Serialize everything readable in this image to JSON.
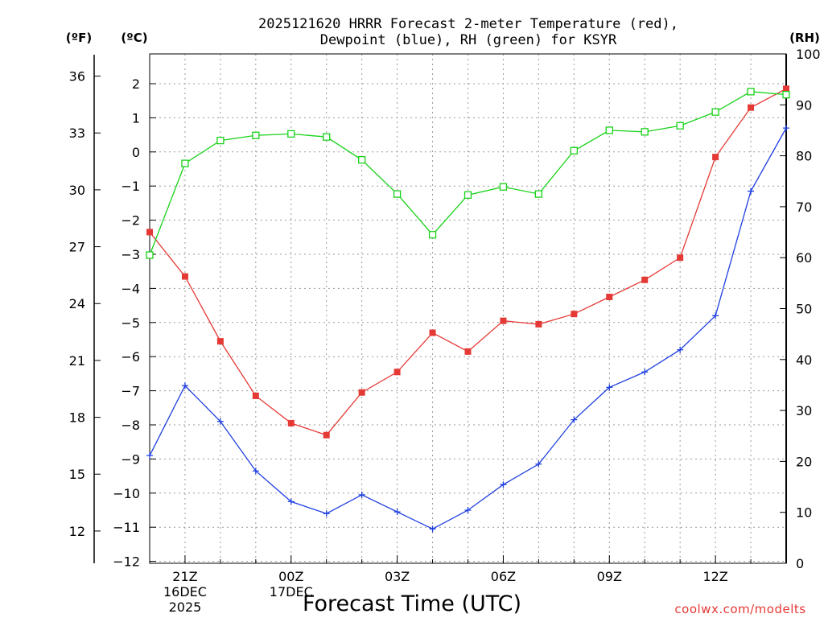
{
  "chart_data": {
    "type": "line",
    "title_lines": [
      "2025121620 HRRR Forecast 2-meter Temperature (red),",
      "Dewpoint (blue), RH (green) for KSYR"
    ],
    "xlabel": "Forecast Time (UTC)",
    "unit_labels": {
      "fahrenheit": "(ºF)",
      "celsius": "(ºC)",
      "rh": "(RH)"
    },
    "x_hours": [
      20,
      21,
      22,
      23,
      24,
      25,
      26,
      27,
      28,
      29,
      30,
      31,
      32,
      33,
      34,
      35,
      36,
      37,
      38
    ],
    "x_range": [
      20,
      38
    ],
    "x_ticks": [
      {
        "hour": 21,
        "lines": [
          "21Z",
          "16DEC",
          "2025"
        ]
      },
      {
        "hour": 24,
        "lines": [
          "00Z",
          "17DEC"
        ]
      },
      {
        "hour": 27,
        "lines": [
          "03Z"
        ]
      },
      {
        "hour": 30,
        "lines": [
          "06Z"
        ]
      },
      {
        "hour": 33,
        "lines": [
          "09Z"
        ]
      },
      {
        "hour": 36,
        "lines": [
          "12Z"
        ]
      }
    ],
    "y_celsius": {
      "range": [
        -12,
        2.9
      ],
      "ticks": [
        "2",
        "1",
        "0",
        "−1",
        "−2",
        "−3",
        "−4",
        "−5",
        "−6",
        "−7",
        "−8",
        "−9",
        "−10",
        "−11",
        "−12"
      ],
      "tick_values": [
        2,
        1,
        0,
        -1,
        -2,
        -3,
        -4,
        -5,
        -6,
        -7,
        -8,
        -9,
        -10,
        -11,
        -12
      ]
    },
    "y_fahrenheit": {
      "ticks": [
        "36",
        "33",
        "30",
        "27",
        "24",
        "21",
        "18",
        "15",
        "12"
      ],
      "tick_values": [
        36,
        33,
        30,
        27,
        24,
        21,
        18,
        15,
        12
      ]
    },
    "y_rh": {
      "range": [
        0,
        100
      ],
      "ticks": [
        "100",
        "90",
        "80",
        "70",
        "60",
        "50",
        "40",
        "30",
        "20",
        "10",
        "0"
      ],
      "tick_values": [
        100,
        90,
        80,
        70,
        60,
        50,
        40,
        30,
        20,
        10,
        0
      ]
    },
    "series": [
      {
        "name": "Temperature",
        "axis": "celsius",
        "color": "#e53935",
        "marker": "filled-square",
        "values": [
          -2.35,
          -3.65,
          -5.55,
          -7.15,
          -7.95,
          -8.3,
          -7.05,
          -6.45,
          -5.3,
          -5.85,
          -4.95,
          -5.05,
          -4.75,
          -4.25,
          -3.75,
          -3.1,
          -0.15,
          1.3,
          1.85
        ]
      },
      {
        "name": "Dewpoint",
        "axis": "celsius",
        "color": "#1f3fe0",
        "marker": "plus",
        "values": [
          -8.9,
          -6.85,
          -7.9,
          -9.35,
          -10.25,
          -10.6,
          -10.05,
          -10.55,
          -11.05,
          -10.5,
          -9.75,
          -9.15,
          -7.85,
          -6.9,
          -6.45,
          -5.8,
          -4.8,
          -1.15,
          0.7
        ]
      },
      {
        "name": "RH",
        "axis": "rh",
        "color": "#19d219",
        "marker": "open-square",
        "values": [
          60.5,
          78.5,
          83,
          84,
          84.3,
          83.7,
          79.2,
          72.5,
          64.5,
          72.3,
          73.9,
          72.5,
          81,
          85,
          84.7,
          85.9,
          88.6,
          92.6,
          92
        ]
      }
    ],
    "grid": true,
    "footer": "coolwx.com/modelts"
  }
}
